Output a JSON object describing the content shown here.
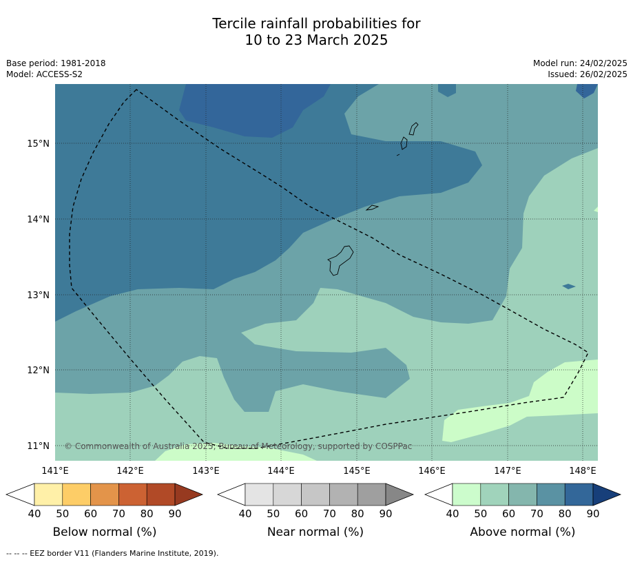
{
  "title_line1": "Tercile rainfall probabilities for",
  "title_line2": "10 to 23 March 2025",
  "meta_left": [
    "Base period: 1981-2018",
    "Model: ACCESS-S2"
  ],
  "meta_right": [
    "Model run: 24/02/2025",
    "Issued: 26/02/2025"
  ],
  "copyright": "© Commonwealth of Australia 2025, Bureau of Meteorology, supported by COSPPac",
  "lon_ticks": [
    "141°E",
    "142°E",
    "143°E",
    "144°E",
    "145°E",
    "146°E",
    "147°E",
    "148°E"
  ],
  "lat_ticks": [
    "15°N",
    "14°N",
    "13°N",
    "12°N",
    "11°N"
  ],
  "colorbars": [
    {
      "name": "below",
      "label": "Below normal (%)",
      "ticks": [
        "40",
        "50",
        "60",
        "70",
        "80",
        "90"
      ],
      "colors": [
        "#fff0a8",
        "#fdcd67",
        "#e3944a",
        "#cc6233",
        "#b14a27",
        "#973a20"
      ]
    },
    {
      "name": "near",
      "label": "Near normal (%)",
      "ticks": [
        "40",
        "50",
        "60",
        "70",
        "80",
        "90"
      ],
      "colors": [
        "#e4e4e4",
        "#d7d7d7",
        "#c6c6c6",
        "#b2b2b2",
        "#9f9f9f",
        "#878787"
      ]
    },
    {
      "name": "above",
      "label": "Above normal (%)",
      "ticks": [
        "40",
        "50",
        "60",
        "70",
        "80",
        "90"
      ],
      "colors": [
        "#ccfccc",
        "#a0d3bb",
        "#84b6ad",
        "#5a92a3",
        "#336799",
        "#173f7a"
      ]
    }
  ],
  "map_colors": {
    "a80": "#33669a",
    "a70": "#3e7a98",
    "a60": "#6ca3a8",
    "a50": "#9ed1bb",
    "a40": "#ccfcc8"
  },
  "footer": "-- -- -- EEZ border V11 (Flanders Marine Institute, 2019)."
}
